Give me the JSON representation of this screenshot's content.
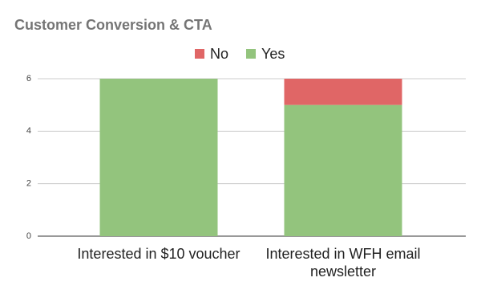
{
  "chart_data": {
    "type": "stacked_bar",
    "title": "Customer Conversion & CTA",
    "categories": [
      "Interested in $10 voucher",
      "Interested in WFH email newsletter"
    ],
    "series": [
      {
        "name": "No",
        "color": "#e06666",
        "values": [
          0,
          1
        ]
      },
      {
        "name": "Yes",
        "color": "#93c47d",
        "values": [
          6,
          5
        ]
      }
    ],
    "ylim": [
      0,
      6
    ],
    "yticks": [
      0,
      2,
      4,
      6
    ],
    "grid": true,
    "legend": "top"
  }
}
